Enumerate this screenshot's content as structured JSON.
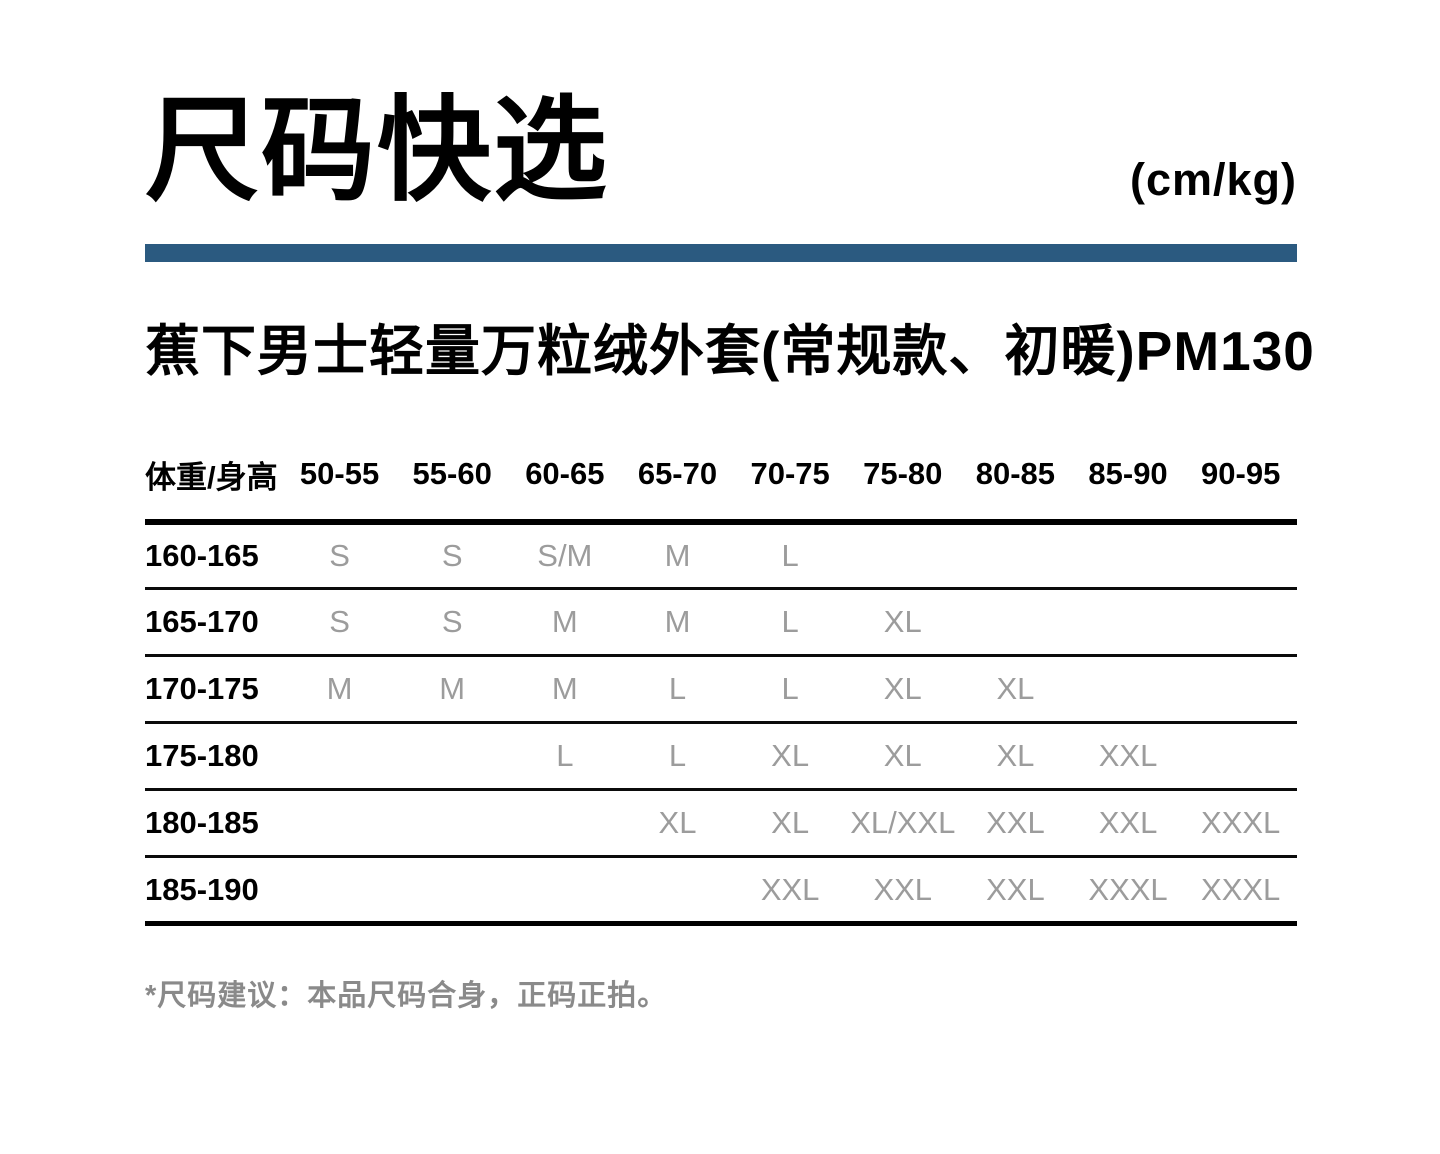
{
  "page": {
    "title": "尺码快选",
    "unit": "(cm/kg)",
    "product_name": "蕉下男士轻量万粒绒外套(常规款、初暖)PM130",
    "footnote": "*尺码建议：本品尺码合身，正码正拍。"
  },
  "colors": {
    "divider_blue": "#2B5A80",
    "size_value_gray": "#9C9C9C",
    "footnote_gray": "#8A8A8A",
    "text_black": "#000000"
  },
  "size_table": {
    "corner_header": "体重/身高",
    "weight_columns": [
      "50-55",
      "55-60",
      "60-65",
      "65-70",
      "70-75",
      "75-80",
      "80-85",
      "85-90",
      "90-95"
    ],
    "rows": [
      {
        "height": "160-165",
        "sizes": [
          "S",
          "S",
          "S/M",
          "M",
          "L",
          "",
          "",
          "",
          ""
        ]
      },
      {
        "height": "165-170",
        "sizes": [
          "S",
          "S",
          "M",
          "M",
          "L",
          "XL",
          "",
          "",
          ""
        ]
      },
      {
        "height": "170-175",
        "sizes": [
          "M",
          "M",
          "M",
          "L",
          "L",
          "XL",
          "XL",
          "",
          ""
        ]
      },
      {
        "height": "175-180",
        "sizes": [
          "",
          "",
          "L",
          "L",
          "XL",
          "XL",
          "XL",
          "XXL",
          ""
        ]
      },
      {
        "height": "180-185",
        "sizes": [
          "",
          "",
          "",
          "XL",
          "XL",
          "XL/XXL",
          "XXL",
          "XXL",
          "XXXL"
        ]
      },
      {
        "height": "185-190",
        "sizes": [
          "",
          "",
          "",
          "",
          "XXL",
          "XXL",
          "XXL",
          "XXXL",
          "XXXL"
        ]
      }
    ]
  }
}
